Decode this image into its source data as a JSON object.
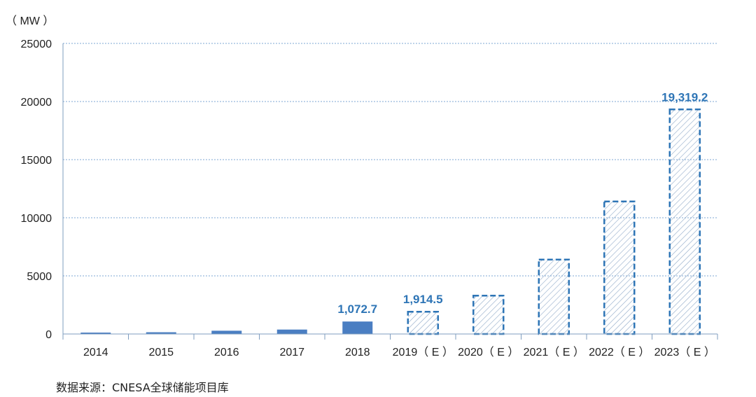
{
  "chart_data": {
    "type": "bar",
    "y_unit": "（ MW ）",
    "categories": [
      "2014",
      "2015",
      "2016",
      "2017",
      "2018",
      "2019（ E ）",
      "2020（ E ）",
      "2021（ E ）",
      "2022（ E ）",
      "2023（ E ）"
    ],
    "values": [
      120,
      150,
      280,
      380,
      1072.7,
      1914.5,
      3300,
      6400,
      11400,
      19319.2
    ],
    "estimated": [
      false,
      false,
      false,
      false,
      false,
      true,
      true,
      true,
      true,
      true
    ],
    "data_labels": [
      "",
      "",
      "",
      "",
      "1,072.7",
      "1,914.5",
      "",
      "",
      "",
      "19,319.2"
    ],
    "ylim": [
      0,
      25000
    ],
    "yticks": [
      0,
      5000,
      10000,
      15000,
      20000,
      25000
    ],
    "grid": true,
    "colors": {
      "actual": "#4A7EC2",
      "estimated_stroke": "#2E75B6",
      "label": "#2E75B6",
      "grid": "#7DA7D3",
      "axis": "#7F9DBF"
    }
  },
  "source": "数据来源：CNESA全球储能项目库"
}
